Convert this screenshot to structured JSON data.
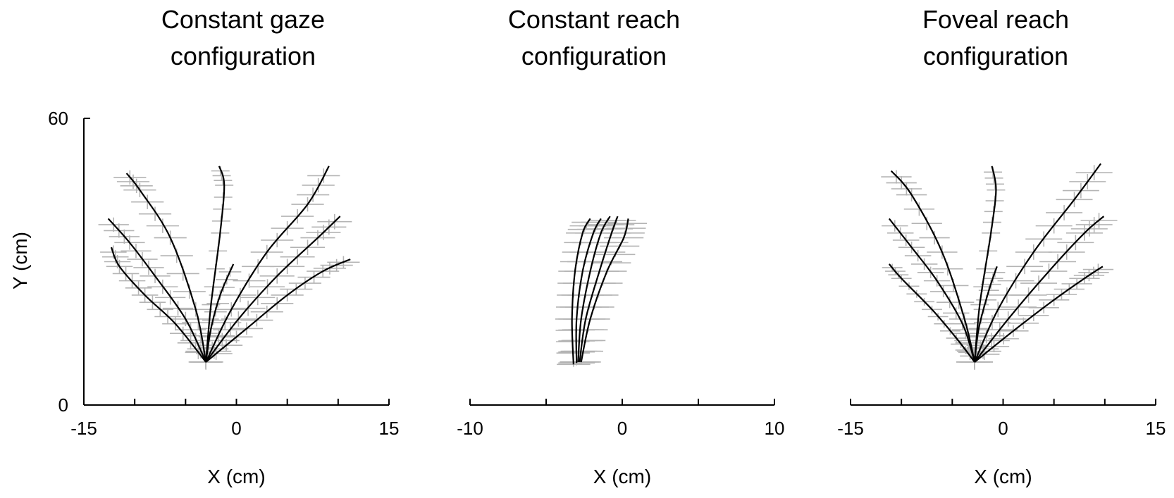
{
  "ylabel": "Y (cm)",
  "chart_data": [
    {
      "type": "line",
      "title": [
        "Constant gaze",
        "configuration"
      ],
      "xlabel": "X (cm)",
      "xlim": [
        -15,
        15
      ],
      "ylim": [
        0,
        60
      ],
      "xticks": [
        -15,
        -10,
        -5,
        0,
        5,
        10,
        15
      ],
      "xtick_labels": [
        "-15",
        "",
        "",
        "0",
        "",
        "",
        "15"
      ],
      "ytick_labels": [
        "60",
        "0"
      ],
      "error_bar_color": "#b4b4b4",
      "line_color": "#000000",
      "series": [
        {
          "points": [
            [
              -3,
              9
            ],
            [
              -6,
              17
            ],
            [
              -9,
              23
            ],
            [
              -11.5,
              29
            ],
            [
              -12.3,
              33
            ]
          ],
          "err_x": 1.3,
          "err_y": 1.4
        },
        {
          "points": [
            [
              -3,
              9
            ],
            [
              -5,
              18
            ],
            [
              -8,
              27
            ],
            [
              -10.5,
              34
            ],
            [
              -12.6,
              39
            ]
          ],
          "err_x": 1.5,
          "err_y": 1.5
        },
        {
          "points": [
            [
              -3,
              9
            ],
            [
              -4,
              20
            ],
            [
              -6.5,
              35
            ],
            [
              -9.5,
              45
            ],
            [
              -10.8,
              48.5
            ]
          ],
          "err_x": 1.6,
          "err_y": 1.5
        },
        {
          "points": [
            [
              -3,
              9
            ],
            [
              -2.5,
              21
            ],
            [
              -1.6,
              36
            ],
            [
              -1.2,
              46
            ],
            [
              -1.7,
              50
            ]
          ],
          "err_x": 0.9,
          "err_y": 1.0
        },
        {
          "points": [
            [
              -3,
              9
            ],
            [
              -2.5,
              16
            ],
            [
              -1.6,
              23
            ],
            [
              -0.3,
              29.5
            ]
          ],
          "err_x": 1.1,
          "err_y": 1.0
        },
        {
          "points": [
            [
              -3,
              9
            ],
            [
              -0.5,
              20
            ],
            [
              3,
              32
            ],
            [
              7,
              42
            ],
            [
              9.1,
              50
            ]
          ],
          "err_x": 1.6,
          "err_y": 1.5
        },
        {
          "points": [
            [
              -3,
              9
            ],
            [
              0.2,
              18
            ],
            [
              4,
              27
            ],
            [
              8,
              35
            ],
            [
              10.2,
              39.5
            ]
          ],
          "err_x": 1.7,
          "err_y": 1.6
        },
        {
          "points": [
            [
              -3,
              9
            ],
            [
              1,
              16
            ],
            [
              5,
              23
            ],
            [
              8.5,
              28
            ],
            [
              11.2,
              30.5
            ]
          ],
          "err_x": 1.6,
          "err_y": 1.3
        }
      ]
    },
    {
      "type": "line",
      "title": [
        "Constant reach",
        "configuration"
      ],
      "xlabel": "X (cm)",
      "xlim": [
        -10,
        10
      ],
      "ylim": [
        0,
        60
      ],
      "xticks": [
        -10,
        -5,
        0,
        5,
        10
      ],
      "xtick_labels": [
        "-10",
        "",
        "0",
        "",
        "10"
      ],
      "ytick_labels": [],
      "error_bar_color": "#b4b4b4",
      "line_color": "#000000",
      "series": [
        {
          "points": [
            [
              -3.2,
              8.5
            ],
            [
              -3.3,
              18
            ],
            [
              -3.1,
              28
            ],
            [
              -2.6,
              36
            ],
            [
              -2.1,
              39
            ]
          ],
          "err_x": 1.1,
          "err_y": 0.5
        },
        {
          "points": [
            [
              -3.0,
              8.8
            ],
            [
              -3.0,
              18
            ],
            [
              -2.6,
              28
            ],
            [
              -1.9,
              36
            ],
            [
              -1.4,
              39
            ]
          ],
          "err_x": 1.2,
          "err_y": 0.5
        },
        {
          "points": [
            [
              -2.9,
              9
            ],
            [
              -2.7,
              18
            ],
            [
              -2.1,
              28
            ],
            [
              -1.4,
              36
            ],
            [
              -0.8,
              39.5
            ]
          ],
          "err_x": 1.2,
          "err_y": 0.5
        },
        {
          "points": [
            [
              -2.8,
              9
            ],
            [
              -2.4,
              18
            ],
            [
              -1.5,
              28
            ],
            [
              -0.7,
              36
            ],
            [
              -0.3,
              39.5
            ]
          ],
          "err_x": 1.3,
          "err_y": 0.5
        },
        {
          "points": [
            [
              -2.7,
              9
            ],
            [
              -2.1,
              18
            ],
            [
              -1.0,
              28
            ],
            [
              0.1,
              35
            ],
            [
              0.4,
              39
            ]
          ],
          "err_x": 1.3,
          "err_y": 0.5
        }
      ]
    },
    {
      "type": "line",
      "title": [
        "Foveal reach",
        "configuration"
      ],
      "xlabel": "X (cm)",
      "xlim": [
        -15,
        15
      ],
      "ylim": [
        0,
        60
      ],
      "xticks": [
        -15,
        -10,
        -5,
        0,
        5,
        10,
        15
      ],
      "xtick_labels": [
        "-15",
        "",
        "",
        "0",
        "",
        "",
        "15"
      ],
      "ytick_labels": [],
      "error_bar_color": "#b4b4b4",
      "line_color": "#000000",
      "series": [
        {
          "points": [
            [
              -2.8,
              9
            ],
            [
              -4.6,
              14
            ],
            [
              -7,
              20
            ],
            [
              -10,
              26.5
            ],
            [
              -11.2,
              29.5
            ]
          ],
          "err_x": 1.0,
          "err_y": 0.8
        },
        {
          "points": [
            [
              -2.8,
              9
            ],
            [
              -4,
              17
            ],
            [
              -6.5,
              26
            ],
            [
              -9,
              33
            ],
            [
              -11.2,
              39
            ]
          ],
          "err_x": 1.3,
          "err_y": 1.2
        },
        {
          "points": [
            [
              -2.8,
              9
            ],
            [
              -3.8,
              18
            ],
            [
              -6,
              32
            ],
            [
              -9,
              44
            ],
            [
              -11,
              49
            ]
          ],
          "err_x": 1.5,
          "err_y": 1.4
        },
        {
          "points": [
            [
              -2.8,
              9
            ],
            [
              -2.3,
              21
            ],
            [
              -1.2,
              36
            ],
            [
              -0.7,
              45
            ],
            [
              -1.1,
              50
            ]
          ],
          "err_x": 0.9,
          "err_y": 1.1
        },
        {
          "points": [
            [
              -2.8,
              9
            ],
            [
              -2.4,
              16
            ],
            [
              -1.4,
              24
            ],
            [
              -0.6,
              29
            ]
          ],
          "err_x": 1.0,
          "err_y": 1.0
        },
        {
          "points": [
            [
              -2.8,
              9
            ],
            [
              -0.5,
              20
            ],
            [
              3,
              32
            ],
            [
              7,
              43
            ],
            [
              9.6,
              50.5
            ]
          ],
          "err_x": 1.8,
          "err_y": 1.6
        },
        {
          "points": [
            [
              -2.8,
              9
            ],
            [
              0.5,
              18
            ],
            [
              4.5,
              28
            ],
            [
              8,
              36
            ],
            [
              9.9,
              39.5
            ]
          ],
          "err_x": 1.8,
          "err_y": 1.6
        },
        {
          "points": [
            [
              -2.8,
              9
            ],
            [
              1,
              15.5
            ],
            [
              5,
              22
            ],
            [
              8,
              26.5
            ],
            [
              9.8,
              29
            ]
          ],
          "err_x": 1.5,
          "err_y": 1.2
        }
      ]
    }
  ]
}
